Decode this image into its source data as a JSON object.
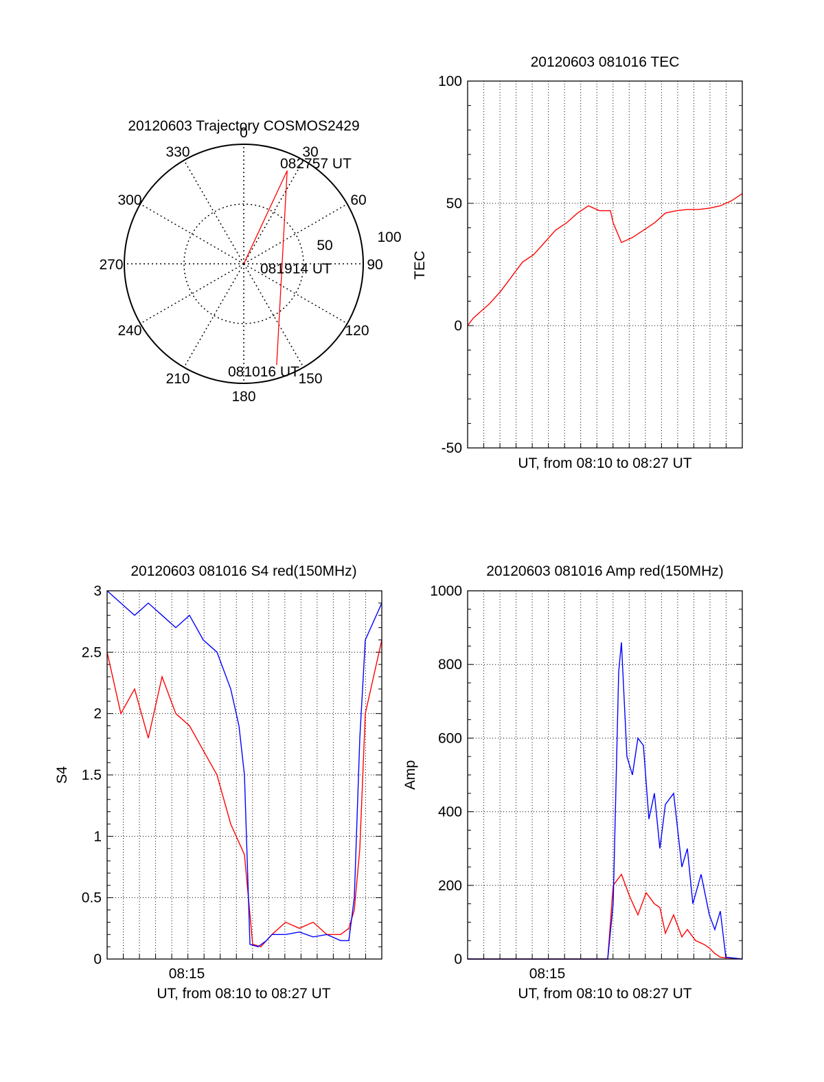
{
  "colors": {
    "red": "#ff0000",
    "blue": "#0000ff",
    "axis": "#000000",
    "grid": "#000000",
    "background": "#ffffff"
  },
  "chart_data": [
    {
      "type": "polar",
      "title": "20120603 Trajectory COSMOS2429",
      "azimuth_labels": [
        "0",
        "30",
        "60",
        "90",
        "120",
        "150",
        "180",
        "210",
        "240",
        "270",
        "300",
        "330"
      ],
      "radial_labels": [
        "50",
        "100"
      ],
      "grid": true,
      "series": [
        {
          "color": "#ff0000",
          "points": [
            [
              162,
              89
            ],
            [
              25,
              86
            ],
            [
              31,
              0
            ]
          ]
        }
      ],
      "annotations": [
        {
          "text": "081016 UT",
          "az": 162,
          "r": 89
        },
        {
          "text": "081914 UT",
          "az": 90,
          "r": 12
        },
        {
          "text": "082757 UT",
          "az": 31,
          "r": 89
        }
      ]
    },
    {
      "type": "line",
      "title": "20120603 081016 TEC",
      "xlabel": "UT, from 08:10 to 08:27 UT",
      "ylabel": "TEC",
      "xlim": [
        0,
        1.0
      ],
      "ylim": [
        -50,
        100
      ],
      "yticks": [
        "-50",
        "0",
        "50",
        "100"
      ],
      "grid": true,
      "series": [
        {
          "color": "#ff0000",
          "x": [
            0,
            0.02,
            0.05,
            0.08,
            0.12,
            0.16,
            0.2,
            0.24,
            0.28,
            0.32,
            0.36,
            0.4,
            0.44,
            0.48,
            0.52,
            0.53,
            0.56,
            0.6,
            0.64,
            0.68,
            0.72,
            0.76,
            0.8,
            0.84,
            0.88,
            0.92,
            0.96,
            1.0
          ],
          "y": [
            0,
            3,
            6,
            9,
            14,
            20,
            26,
            29,
            34,
            39,
            42,
            46,
            49,
            47,
            47,
            42,
            34,
            36,
            39,
            42,
            46,
            47,
            47.5,
            47.5,
            48,
            49,
            51,
            54
          ]
        }
      ]
    },
    {
      "type": "line",
      "title": "20120603 081016 S4 red(150MHz)",
      "xlabel": "UT, from 08:10 to 08:27 UT",
      "ylabel": "S4",
      "xlim": [
        0,
        1.0
      ],
      "ylim": [
        0,
        3
      ],
      "yticks": [
        "0",
        "0.5",
        "1",
        "1.5",
        "2",
        "2.5",
        "3"
      ],
      "xticks": [
        {
          "x": 0.29,
          "label": "08:15"
        }
      ],
      "grid": true,
      "series": [
        {
          "color": "#ff0000",
          "x": [
            0,
            0.05,
            0.1,
            0.15,
            0.2,
            0.25,
            0.3,
            0.35,
            0.4,
            0.45,
            0.5,
            0.53,
            0.56,
            0.6,
            0.65,
            0.7,
            0.75,
            0.8,
            0.85,
            0.88,
            0.9,
            0.92,
            0.94,
            1.0
          ],
          "y": [
            2.5,
            2.0,
            2.2,
            1.8,
            2.3,
            2.0,
            1.9,
            1.7,
            1.5,
            1.1,
            0.85,
            0.12,
            0.1,
            0.2,
            0.3,
            0.25,
            0.3,
            0.2,
            0.2,
            0.25,
            0.4,
            0.9,
            2.0,
            2.6
          ]
        },
        {
          "color": "#0000ff",
          "x": [
            0,
            0.05,
            0.1,
            0.15,
            0.2,
            0.25,
            0.3,
            0.35,
            0.4,
            0.45,
            0.48,
            0.5,
            0.52,
            0.55,
            0.58,
            0.6,
            0.65,
            0.7,
            0.75,
            0.8,
            0.85,
            0.88,
            0.9,
            0.92,
            0.94,
            1.0
          ],
          "y": [
            3.0,
            2.9,
            2.8,
            2.9,
            2.8,
            2.7,
            2.8,
            2.6,
            2.5,
            2.2,
            1.9,
            1.5,
            0.12,
            0.1,
            0.15,
            0.2,
            0.2,
            0.22,
            0.18,
            0.2,
            0.15,
            0.15,
            0.5,
            1.8,
            2.6,
            2.9
          ]
        }
      ]
    },
    {
      "type": "line",
      "title": "20120603 081016 Amp red(150MHz)",
      "xlabel": "UT, from 08:10 to 08:27 UT",
      "ylabel": "Amp",
      "xlim": [
        0,
        1.0
      ],
      "ylim": [
        0,
        1000
      ],
      "yticks": [
        "0",
        "200",
        "400",
        "600",
        "800",
        "1000"
      ],
      "xticks": [
        {
          "x": 0.29,
          "label": "08:15"
        }
      ],
      "grid": true,
      "series": [
        {
          "color": "#ff0000",
          "x": [
            0,
            0.1,
            0.2,
            0.3,
            0.4,
            0.5,
            0.51,
            0.53,
            0.56,
            0.59,
            0.62,
            0.65,
            0.68,
            0.7,
            0.72,
            0.75,
            0.78,
            0.8,
            0.83,
            0.86,
            0.88,
            0.9,
            0.92,
            1.0
          ],
          "y": [
            0,
            0,
            0,
            0,
            0,
            0,
            0,
            200,
            230,
            170,
            120,
            180,
            150,
            140,
            70,
            120,
            60,
            80,
            50,
            40,
            30,
            15,
            5,
            0
          ]
        },
        {
          "color": "#0000ff",
          "x": [
            0,
            0.1,
            0.2,
            0.3,
            0.4,
            0.5,
            0.51,
            0.53,
            0.55,
            0.56,
            0.58,
            0.6,
            0.62,
            0.64,
            0.66,
            0.68,
            0.7,
            0.72,
            0.75,
            0.78,
            0.8,
            0.82,
            0.85,
            0.88,
            0.9,
            0.92,
            0.94,
            1.0
          ],
          "y": [
            0,
            0,
            0,
            0,
            0,
            0,
            0,
            150,
            780,
            860,
            550,
            500,
            600,
            580,
            380,
            450,
            300,
            420,
            450,
            250,
            300,
            150,
            230,
            120,
            80,
            130,
            5,
            0
          ]
        }
      ]
    }
  ]
}
